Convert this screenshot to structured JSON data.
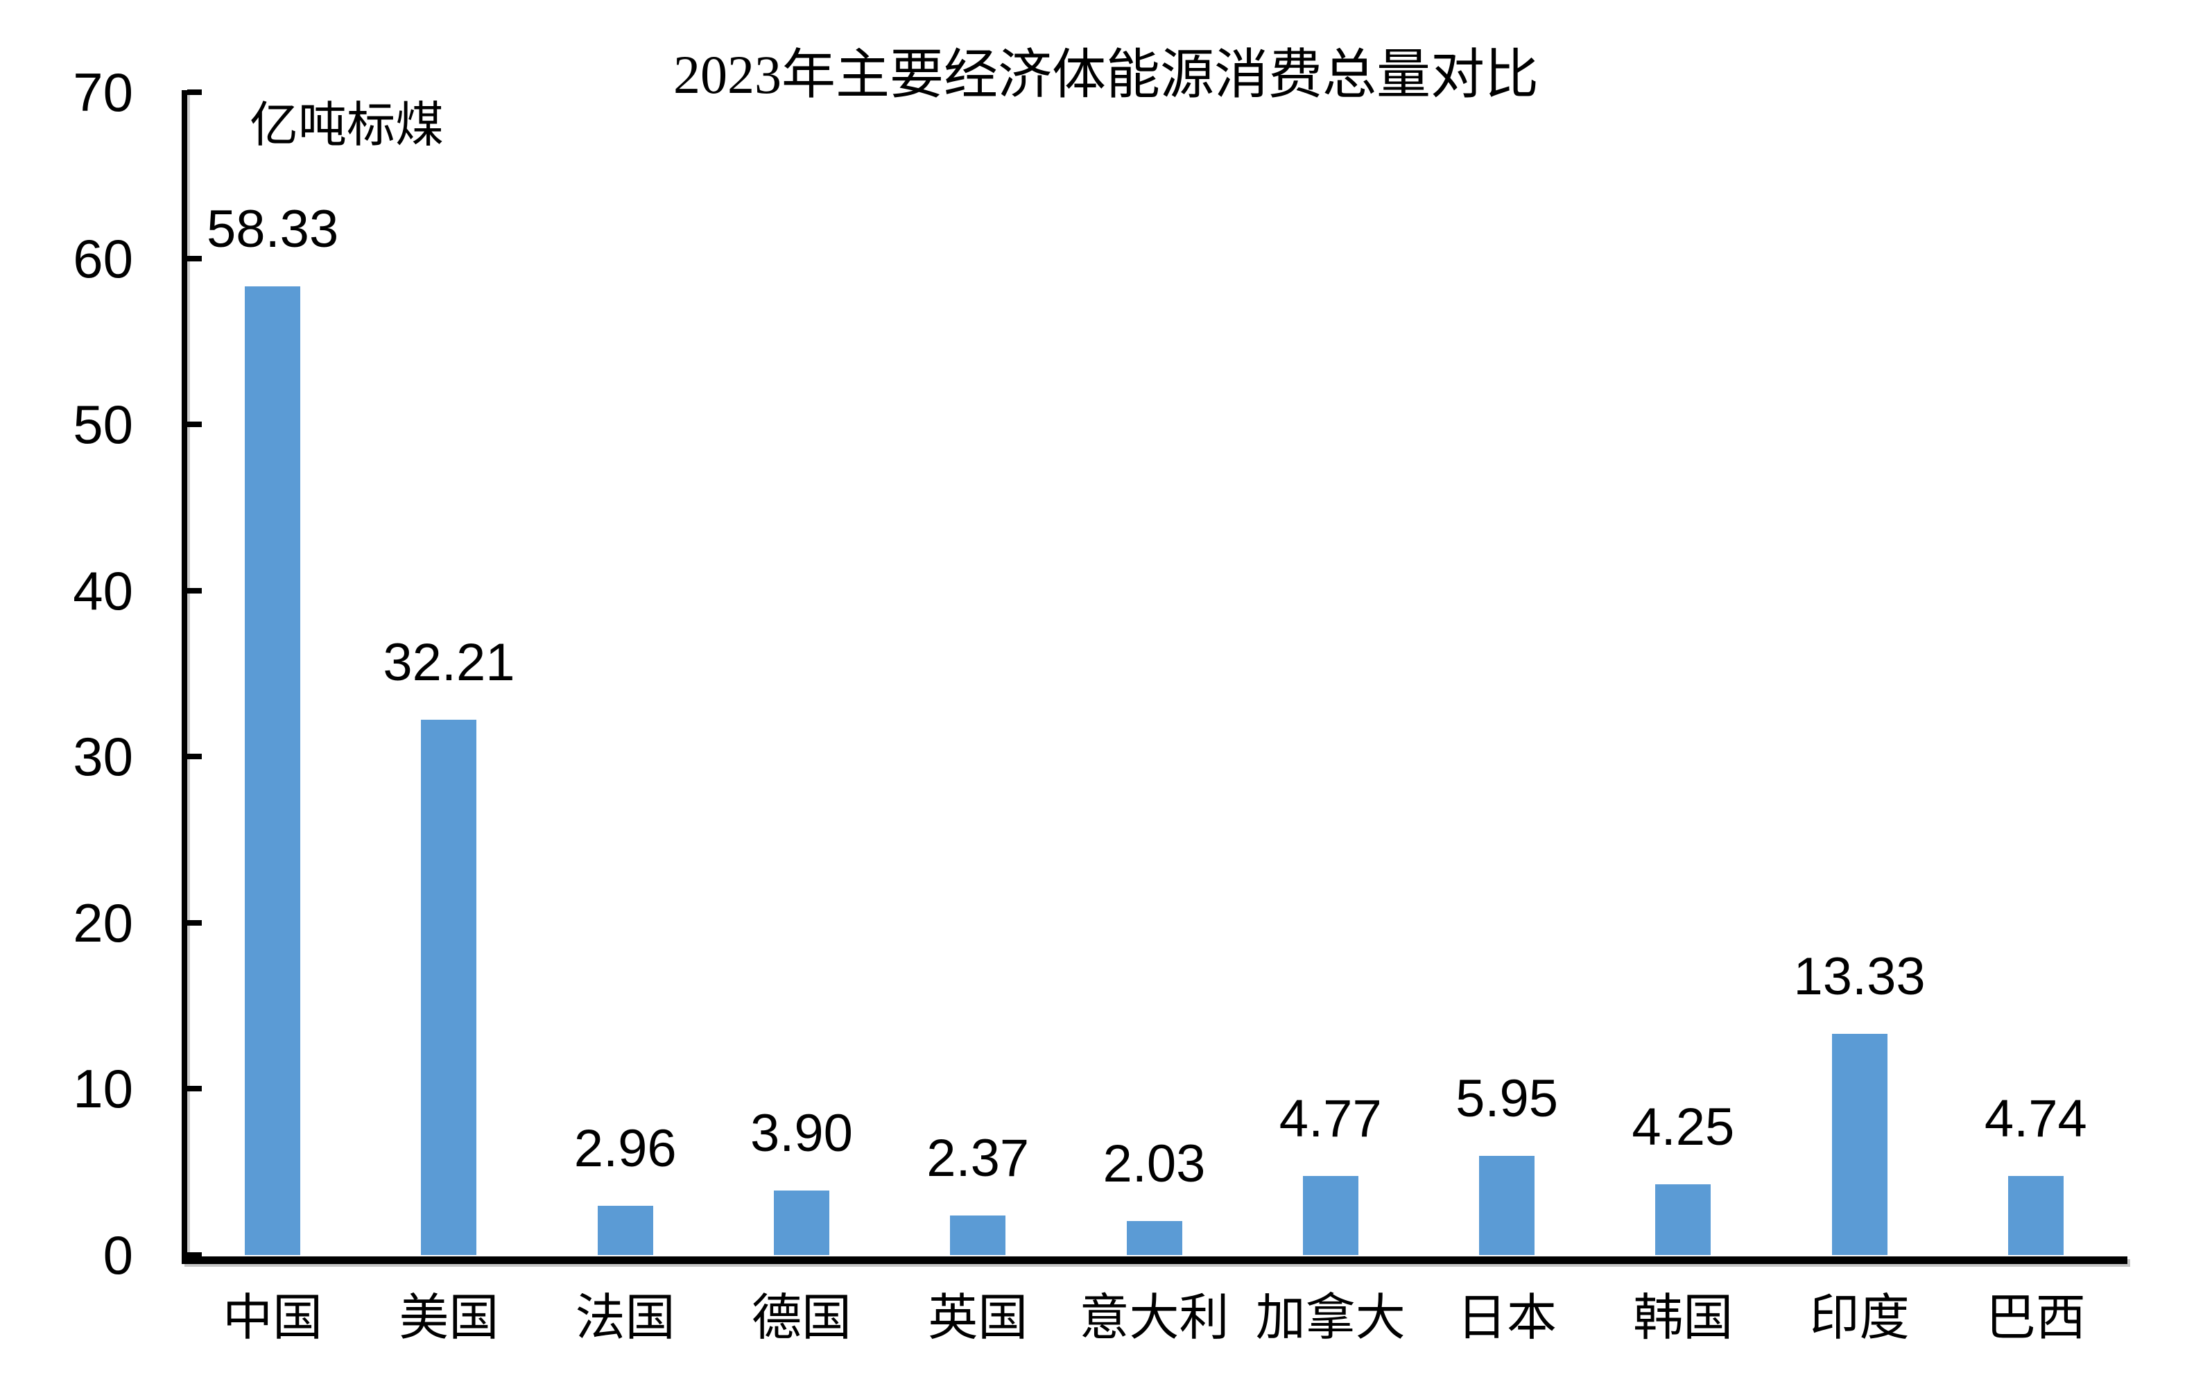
{
  "chart_data": {
    "type": "bar",
    "title": "2023年主要经济体能源消费总量对比",
    "unit_label": "亿吨标煤",
    "categories": [
      "中国",
      "美国",
      "法国",
      "德国",
      "英国",
      "意大利",
      "加拿大",
      "日本",
      "韩国",
      "印度",
      "巴西"
    ],
    "values": [
      58.33,
      32.21,
      2.96,
      3.9,
      2.37,
      2.03,
      4.77,
      5.95,
      4.25,
      13.33,
      4.74
    ],
    "data_labels": [
      "58.33",
      "32.21",
      "2.96",
      "3.90",
      "2.37",
      "2.03",
      "4.77",
      "5.95",
      "4.25",
      "13.33",
      "4.74"
    ],
    "yticks": [
      0,
      10,
      20,
      30,
      40,
      50,
      60,
      70
    ],
    "ylim": [
      0,
      70
    ],
    "xlabel": "",
    "ylabel": "亿吨标煤",
    "bar_color": "#5B9BD5",
    "axis_color": "#000000",
    "text_color": "#000000",
    "background_color": "#FFFFFF",
    "grid": "off",
    "legend": "none",
    "data_label_position": "above-bar"
  }
}
